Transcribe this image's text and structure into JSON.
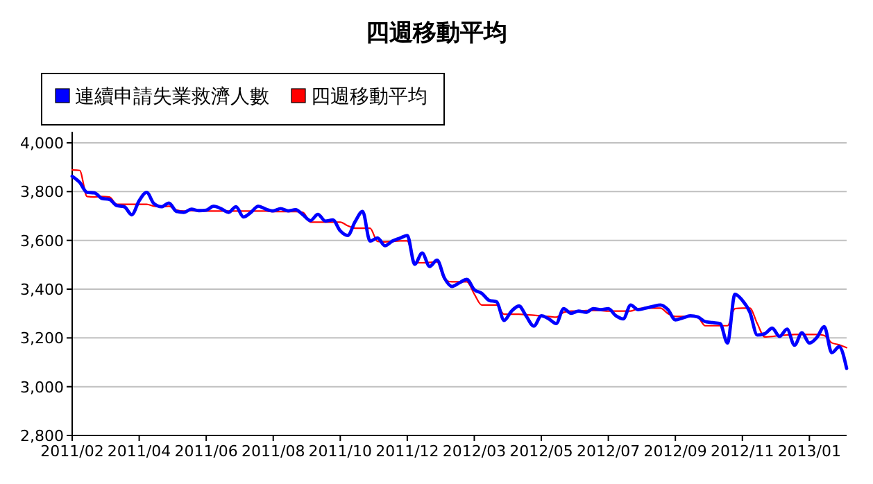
{
  "chart_data": {
    "type": "line",
    "title": "四週移動平均",
    "categories": [
      "2011/02",
      null,
      null,
      null,
      null,
      null,
      null,
      null,
      null,
      "2011/04",
      null,
      null,
      null,
      null,
      null,
      null,
      null,
      null,
      "2011/06",
      null,
      null,
      null,
      null,
      null,
      null,
      null,
      null,
      "2011/08",
      null,
      null,
      null,
      null,
      null,
      null,
      null,
      null,
      "2011/10",
      null,
      null,
      null,
      null,
      null,
      null,
      null,
      null,
      "2011/12",
      null,
      null,
      null,
      null,
      null,
      null,
      null,
      null,
      "2012/03",
      null,
      null,
      null,
      null,
      null,
      null,
      null,
      null,
      "2012/05",
      null,
      null,
      null,
      null,
      null,
      null,
      null,
      null,
      "2012/07",
      null,
      null,
      null,
      null,
      null,
      null,
      null,
      null,
      "2012/09",
      null,
      null,
      null,
      null,
      null,
      null,
      null,
      null,
      "2012/11",
      null,
      null,
      null,
      null,
      null,
      null,
      null,
      null,
      "2013/01",
      null,
      null,
      null,
      null,
      null
    ],
    "series": [
      {
        "name": "連續申請失業救濟人數",
        "color": "#0000ff",
        "values": [
          3863,
          3838,
          3797,
          3795,
          3772,
          3768,
          3743,
          3738,
          3705,
          3763,
          3797,
          3750,
          3738,
          3753,
          3719,
          3715,
          3728,
          3722,
          3724,
          3740,
          3730,
          3715,
          3738,
          3696,
          3715,
          3740,
          3728,
          3721,
          3730,
          3721,
          3726,
          3705,
          3681,
          3707,
          3679,
          3684,
          3639,
          3620,
          3677,
          3719,
          3597,
          3610,
          3578,
          3597,
          3609,
          3620,
          3502,
          3548,
          3493,
          3519,
          3445,
          3411,
          3426,
          3440,
          3398,
          3383,
          3354,
          3348,
          3272,
          3310,
          3331,
          3288,
          3248,
          3291,
          3278,
          3259,
          3320,
          3301,
          3310,
          3305,
          3320,
          3316,
          3320,
          3291,
          3278,
          3335,
          3316,
          3322,
          3329,
          3335,
          3316,
          3274,
          3282,
          3291,
          3286,
          3267,
          3263,
          3259,
          3179,
          3379,
          3354,
          3306,
          3212,
          3217,
          3240,
          3206,
          3236,
          3170,
          3221,
          3179,
          3202,
          3246,
          3139,
          3164,
          3075
        ]
      },
      {
        "name": "四週移動平均",
        "color": "#ff0000",
        "values": [
          3889,
          3887,
          3780,
          3778,
          3780,
          3778,
          3748,
          3748,
          3748,
          3748,
          3748,
          3740,
          3738,
          3740,
          3725,
          3720,
          3722,
          3720,
          3720,
          3720,
          3720,
          3720,
          3720,
          3720,
          3720,
          3720,
          3720,
          3718,
          3718,
          3718,
          3718,
          3715,
          3675,
          3675,
          3675,
          3675,
          3675,
          3660,
          3650,
          3650,
          3650,
          3596,
          3594,
          3596,
          3598,
          3598,
          3510,
          3508,
          3510,
          3512,
          3440,
          3430,
          3430,
          3430,
          3380,
          3335,
          3335,
          3335,
          3297,
          3297,
          3297,
          3295,
          3293,
          3290,
          3288,
          3285,
          3305,
          3310,
          3310,
          3312,
          3312,
          3312,
          3310,
          3310,
          3310,
          3310,
          3320,
          3322,
          3322,
          3322,
          3300,
          3288,
          3288,
          3288,
          3285,
          3250,
          3250,
          3250,
          3250,
          3320,
          3322,
          3322,
          3259,
          3204,
          3206,
          3210,
          3212,
          3214,
          3214,
          3214,
          3214,
          3210,
          3180,
          3172,
          3160
        ]
      }
    ],
    "ylim": [
      2800,
      4000
    ],
    "yticks": [
      {
        "value": 2800,
        "label": "2,800"
      },
      {
        "value": 3000,
        "label": "3,000"
      },
      {
        "value": 3200,
        "label": "3,200"
      },
      {
        "value": 3400,
        "label": "3,400"
      },
      {
        "value": 3600,
        "label": "3,600"
      },
      {
        "value": 3800,
        "label": "3,800"
      },
      {
        "value": 4000,
        "label": "4,000"
      }
    ],
    "grid": "y",
    "legend": "top left",
    "marker": "none",
    "line_style": "solid"
  }
}
